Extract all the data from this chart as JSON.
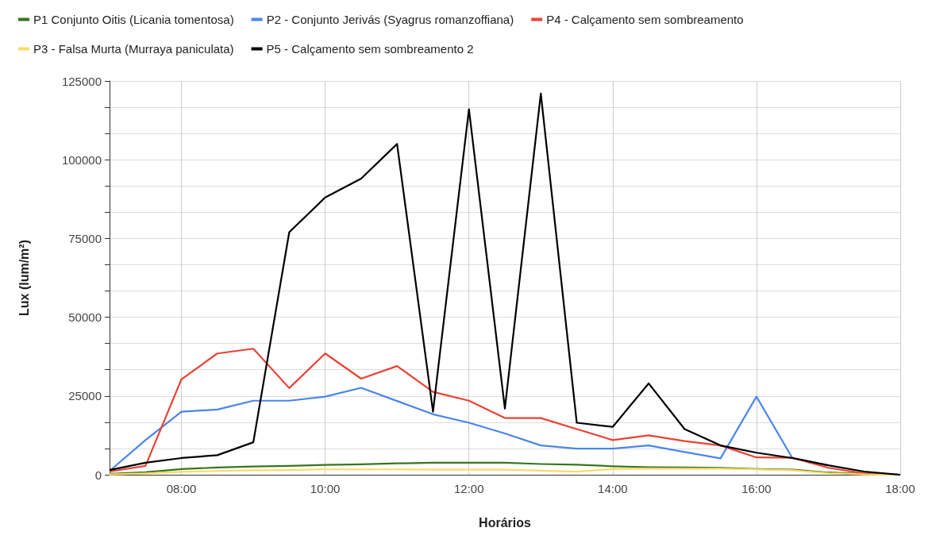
{
  "chart_data": {
    "type": "line",
    "xlabel": "Horários",
    "ylabel": "Lux (lum/m²)",
    "x": [
      7,
      7.5,
      8,
      8.5,
      9,
      9.5,
      10,
      10.5,
      11,
      11.5,
      12,
      12.5,
      13,
      13.5,
      14,
      14.5,
      15,
      15.5,
      16,
      16.5,
      17,
      17.5,
      18
    ],
    "series": [
      {
        "name": "P1 Conjunto Oitis (Licania tomentosa)",
        "color": "#38761d",
        "values": [
          300,
          800,
          1800,
          2300,
          2600,
          2800,
          3100,
          3300,
          3600,
          3800,
          3800,
          3800,
          3400,
          3200,
          2700,
          2400,
          2300,
          2200,
          1800,
          1600,
          700,
          200,
          0
        ]
      },
      {
        "name": "P2 - Conjunto Jerivás (Syagrus romanzoffiana)",
        "color": "#4a86e8",
        "values": [
          1200,
          11000,
          20000,
          20700,
          23500,
          23500,
          24800,
          27600,
          23400,
          19200,
          16500,
          13100,
          9300,
          8300,
          8300,
          9300,
          7200,
          5200,
          24800,
          5300,
          3000,
          null,
          null
        ]
      },
      {
        "name": "P4 - Calçamento sem sombreamento",
        "color": "#ea4335",
        "values": [
          1000,
          2800,
          30300,
          38500,
          40000,
          27500,
          38500,
          30500,
          34500,
          26300,
          23500,
          18000,
          18000,
          14500,
          11000,
          12500,
          10700,
          9300,
          5500,
          5400,
          2200,
          400,
          0
        ]
      },
      {
        "name": "P3 - Falsa Murta (Murraya paniculata)",
        "color": "#ffd966",
        "values": [
          100,
          400,
          900,
          1200,
          1400,
          1500,
          1700,
          1700,
          1700,
          1600,
          1600,
          1600,
          1300,
          1000,
          1800,
          1900,
          1900,
          1900,
          1700,
          1400,
          500,
          100,
          0
        ]
      },
      {
        "name": "P5 - Calçamento sem sombreamento 2",
        "color": "#000000",
        "values": [
          1500,
          3800,
          5300,
          6200,
          10300,
          77000,
          88000,
          94000,
          105000,
          20000,
          116000,
          21000,
          121000,
          16500,
          15200,
          29000,
          14500,
          9300,
          7000,
          5300,
          3000,
          1000,
          0
        ]
      }
    ],
    "xlim": [
      7,
      18
    ],
    "xticks": [
      {
        "value": 8,
        "label": "08:00"
      },
      {
        "value": 10,
        "label": "10:00"
      },
      {
        "value": 12,
        "label": "12:00"
      },
      {
        "value": 14,
        "label": "14:00"
      },
      {
        "value": 16,
        "label": "16:00"
      },
      {
        "value": 18,
        "label": "18:00"
      }
    ],
    "ylim": [
      0,
      125000
    ],
    "yticks": [
      0,
      {
        "value": 8333.33,
        "label": null
      },
      {
        "value": 16666.67,
        "label": null
      },
      25000,
      {
        "value": 33333.33,
        "label": null
      },
      {
        "value": 41666.67,
        "label": null
      },
      50000,
      {
        "value": 58333.33,
        "label": null
      },
      {
        "value": 66666.67,
        "label": null
      },
      75000,
      {
        "value": 83333.33,
        "label": null
      },
      {
        "value": 91666.67,
        "label": null
      },
      100000,
      {
        "value": 108333.33,
        "label": null
      },
      {
        "value": 116666.67,
        "label": null
      },
      125000
    ],
    "grid": true,
    "legend": "top",
    "marker": "none",
    "line_style": "solid"
  }
}
